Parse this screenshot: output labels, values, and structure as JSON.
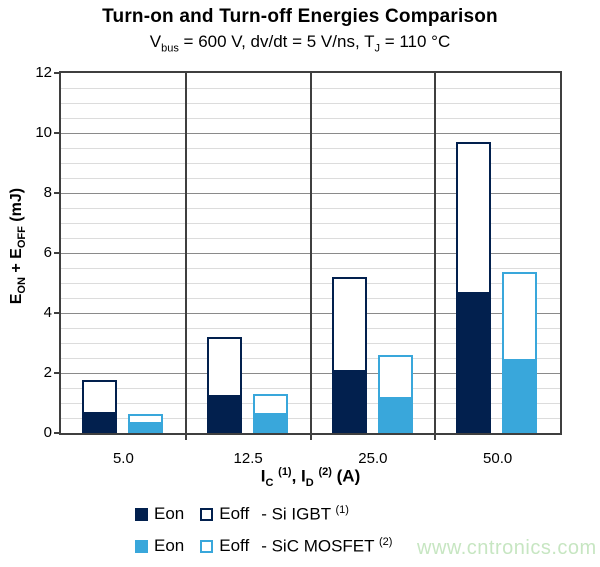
{
  "title": "Turn-on and Turn-off Energies Comparison",
  "subtitle": {
    "p1": "V",
    "sub1": "bus",
    "p2": " = 600 V, dv/dt = 5 V/ns, T",
    "sub2": "J",
    "p3": " = 110 °C"
  },
  "y_axis": {
    "label_parts": {
      "e1": "E",
      "sub1": "ON",
      "plus": " + E",
      "sub2": "OFF",
      "unit": " (mJ)"
    },
    "tick_labels": [
      "0",
      "2",
      "4",
      "6",
      "8",
      "10",
      "12"
    ]
  },
  "x_axis": {
    "label_parts": {
      "i1": "I",
      "sub1": "C",
      "sup1": "(1)",
      "mid": ", I",
      "sub2": "D",
      "sup2": "(2)",
      "unit": " (A)"
    },
    "category_labels": [
      "5.0",
      "12.5",
      "25.0",
      "50.0"
    ]
  },
  "legend": [
    {
      "eon": "Eon",
      "eoff": "Eoff",
      "device": "- Si IGBT ",
      "sup": "(1)",
      "color": "#02204E"
    },
    {
      "eon": "Eon",
      "eoff": "Eoff",
      "device": "- SiC MOSFET ",
      "sup": "(2)",
      "color": "#39A7DB"
    }
  ],
  "watermark": "www.cntronics.com",
  "colors": {
    "navy": "#02204E",
    "blue": "#39A7DB",
    "grid_minor": "#DCDCDC",
    "grid_major": "#8A8A8A",
    "axis": "#3F3F3F",
    "watermark_green": "#C7E6C2"
  },
  "chart_data": {
    "type": "bar",
    "subtype": "stacked-grouped",
    "title": "Turn-on and Turn-off Energies Comparison",
    "subtitle": "Vbus = 600 V, dv/dt = 5 V/ns, TJ = 110 °C",
    "xlabel": "IC (1), ID (2) (A)",
    "ylabel": "EON + EOFF (mJ)",
    "categories": [
      5.0,
      12.5,
      25.0,
      50.0
    ],
    "series": [
      {
        "name": "Eon - Si IGBT",
        "style": "filled",
        "color": "#02204E",
        "values": [
          0.7,
          1.25,
          2.1,
          4.7
        ]
      },
      {
        "name": "Eoff - Si IGBT",
        "style": "outlined",
        "color": "#02204E",
        "values": [
          1.05,
          1.95,
          3.1,
          5.0
        ]
      },
      {
        "name": "Eon - SiC MOSFET",
        "style": "filled",
        "color": "#39A7DB",
        "values": [
          0.38,
          0.65,
          1.2,
          2.45
        ]
      },
      {
        "name": "Eoff - SiC MOSFET",
        "style": "outlined",
        "color": "#39A7DB",
        "values": [
          0.25,
          0.65,
          1.4,
          2.9
        ]
      }
    ],
    "stacks": [
      [
        "Eon - Si IGBT",
        "Eoff - Si IGBT"
      ],
      [
        "Eon - SiC MOSFET",
        "Eoff - SiC MOSFET"
      ]
    ],
    "stack_totals": {
      "si_igbt": [
        1.75,
        3.2,
        5.2,
        9.7
      ],
      "sic_mosfet": [
        0.63,
        1.3,
        2.6,
        5.35
      ]
    },
    "ylim": [
      0,
      12
    ],
    "y_major_step": 2,
    "y_minor_step": 0.5,
    "grid": "horizontal",
    "legend_position": "bottom"
  }
}
